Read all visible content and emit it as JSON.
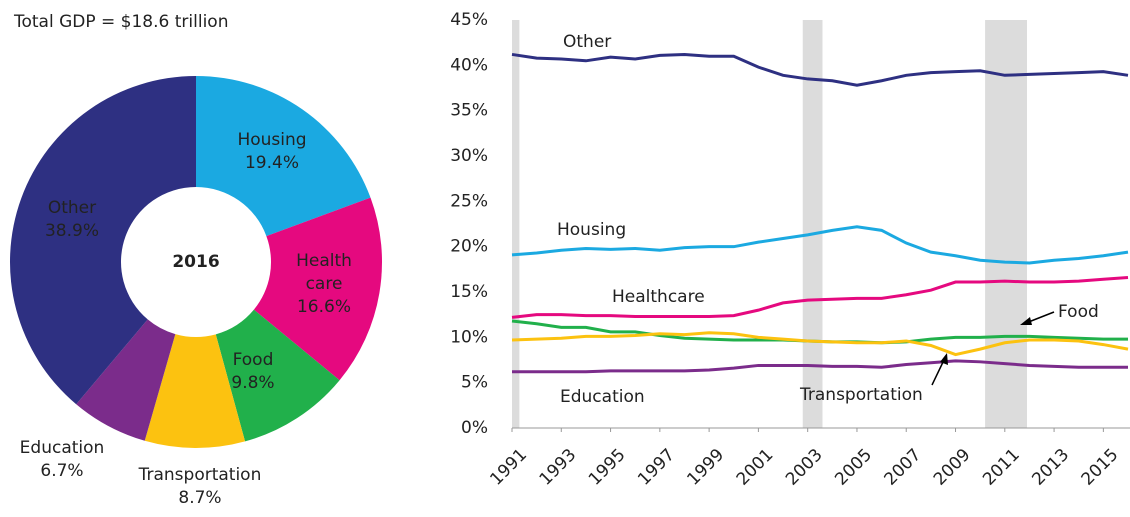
{
  "chart_data": [
    {
      "type": "pie",
      "title": "Total GDP = $18.6 trillion",
      "center_label": "2016",
      "categories": [
        "Housing",
        "Health care",
        "Food",
        "Transportation",
        "Education",
        "Other"
      ],
      "values": [
        19.4,
        16.6,
        9.8,
        8.7,
        6.7,
        38.9
      ],
      "value_labels": [
        "19.4%",
        "16.6%",
        "9.8%",
        "8.7%",
        "6.7%",
        "38.9%"
      ],
      "colors": [
        "#1ba9e1",
        "#e5097f",
        "#21b04b",
        "#fcc210",
        "#7b2c8b",
        "#2e3082"
      ]
    },
    {
      "type": "line",
      "x": [
        1991,
        1992,
        1993,
        1994,
        1995,
        1996,
        1997,
        1998,
        1999,
        2000,
        2001,
        2002,
        2003,
        2004,
        2005,
        2006,
        2007,
        2008,
        2009,
        2010,
        2011,
        2012,
        2013,
        2014,
        2015,
        2016
      ],
      "xlim": [
        1991,
        2016
      ],
      "xticks": [
        1991,
        1993,
        1995,
        1997,
        1999,
        2001,
        2003,
        2005,
        2007,
        2009,
        2011,
        2013,
        2015
      ],
      "ylim": [
        0,
        45
      ],
      "yticks": [
        {
          "value": 0,
          "label": "0%"
        },
        {
          "value": 5,
          "label": "5%"
        },
        {
          "value": 10,
          "label": "10%"
        },
        {
          "value": 15,
          "label": "15%"
        },
        {
          "value": 20,
          "label": "20%"
        },
        {
          "value": 25,
          "label": "25%"
        },
        {
          "value": 30,
          "label": "30%"
        },
        {
          "value": 35,
          "label": "35%"
        },
        {
          "value": 40,
          "label": "40%"
        },
        {
          "value": 45,
          "label": "45%"
        }
      ],
      "shaded_periods": [
        [
          1991,
          1991.3
        ],
        [
          2002.8,
          2003.6
        ],
        [
          2010.2,
          2011.9
        ]
      ],
      "series": [
        {
          "name": "Other",
          "color": "#2e3082",
          "values": [
            41.2,
            40.8,
            40.7,
            40.5,
            40.9,
            40.7,
            41.1,
            41.2,
            41.0,
            41.0,
            39.8,
            38.9,
            38.5,
            38.3,
            37.8,
            38.3,
            38.9,
            39.2,
            39.3,
            39.4,
            38.9,
            39.0,
            39.1,
            39.2,
            39.3,
            38.9
          ]
        },
        {
          "name": "Housing",
          "color": "#1ba9e1",
          "values": [
            19.1,
            19.3,
            19.6,
            19.8,
            19.7,
            19.8,
            19.6,
            19.9,
            20.0,
            20.0,
            20.5,
            20.9,
            21.3,
            21.8,
            22.2,
            21.8,
            20.4,
            19.4,
            19.0,
            18.5,
            18.3,
            18.2,
            18.5,
            18.7,
            19.0,
            19.4
          ]
        },
        {
          "name": "Healthcare",
          "color": "#e5097f",
          "values": [
            12.2,
            12.5,
            12.5,
            12.4,
            12.4,
            12.3,
            12.3,
            12.3,
            12.3,
            12.4,
            13.0,
            13.8,
            14.1,
            14.2,
            14.3,
            14.3,
            14.7,
            15.2,
            16.1,
            16.1,
            16.2,
            16.1,
            16.1,
            16.2,
            16.4,
            16.6
          ]
        },
        {
          "name": "Food",
          "color": "#21b04b",
          "values": [
            11.8,
            11.5,
            11.1,
            11.1,
            10.6,
            10.6,
            10.2,
            9.9,
            9.8,
            9.7,
            9.7,
            9.7,
            9.6,
            9.5,
            9.5,
            9.4,
            9.5,
            9.8,
            10.0,
            10.0,
            10.1,
            10.1,
            10.0,
            9.9,
            9.8,
            9.8
          ]
        },
        {
          "name": "Transportation",
          "color": "#fcc210",
          "values": [
            9.7,
            9.8,
            9.9,
            10.1,
            10.1,
            10.2,
            10.4,
            10.3,
            10.5,
            10.4,
            10.0,
            9.8,
            9.6,
            9.5,
            9.4,
            9.4,
            9.6,
            9.1,
            8.1,
            8.7,
            9.4,
            9.7,
            9.7,
            9.6,
            9.2,
            8.7
          ]
        },
        {
          "name": "Education",
          "color": "#7b2c8b",
          "values": [
            6.2,
            6.2,
            6.2,
            6.2,
            6.3,
            6.3,
            6.3,
            6.3,
            6.4,
            6.6,
            6.9,
            6.9,
            6.9,
            6.8,
            6.8,
            6.7,
            7.0,
            7.2,
            7.4,
            7.3,
            7.1,
            6.9,
            6.8,
            6.7,
            6.7,
            6.7
          ]
        }
      ]
    }
  ]
}
